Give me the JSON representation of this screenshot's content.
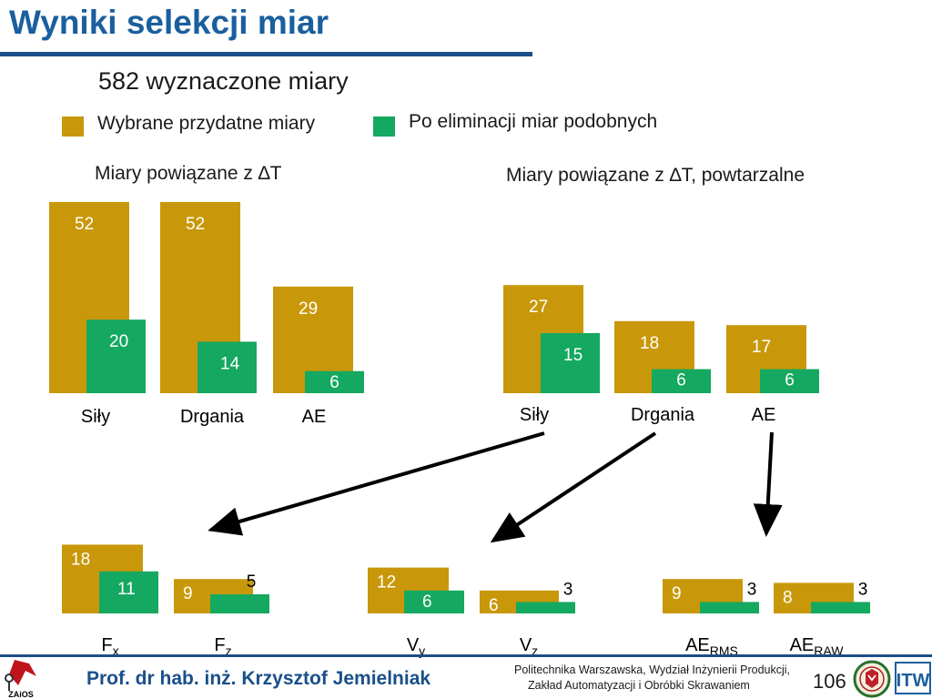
{
  "slide": {
    "title": "Wyniki selekcji miar",
    "subtitle": "582 wyznaczone miary",
    "legend": [
      {
        "label": "Wybrane przydatne miary",
        "color": "#c8980a"
      },
      {
        "label": "Po eliminacji miar podobnych",
        "color": "#15a860"
      }
    ],
    "footer": {
      "author": "Prof. dr hab. inż. Krzysztof Jemielniak",
      "institution_line1": "Politechnika Warszawska, Wydział Inżynierii Produkcji,",
      "institution_line2": "Zakład Automatyzacji i Obróbki Skrawaniem",
      "page_number": "106",
      "logo_left_text": "ZAiOS",
      "logo_right_text": "ITW"
    }
  },
  "chart_data": [
    {
      "type": "bar",
      "title": "Miary powiązane z ∆T",
      "categories": [
        "Siły",
        "Drgania",
        "AE"
      ],
      "series": [
        {
          "name": "Wybrane przydatne miary",
          "values": [
            52,
            52,
            29
          ]
        },
        {
          "name": "Po eliminacji miar podobnych",
          "values": [
            20,
            14,
            6
          ]
        }
      ]
    },
    {
      "type": "bar",
      "title": "Miary powiązane z ∆T, powtarzalne",
      "categories": [
        "Siły",
        "Drgania",
        "AE"
      ],
      "series": [
        {
          "name": "Wybrane przydatne miary",
          "values": [
            27,
            18,
            17
          ]
        },
        {
          "name": "Po eliminacji miar podobnych",
          "values": [
            15,
            6,
            6
          ]
        }
      ]
    },
    {
      "type": "bar",
      "title": "",
      "categories": [
        {
          "main": "F",
          "sub": "x"
        },
        {
          "main": "F",
          "sub": "z"
        },
        {
          "main": "V",
          "sub": "y"
        },
        {
          "main": "V",
          "sub": "z"
        },
        {
          "main": "AE",
          "sub": "RMS"
        },
        {
          "main": "AE",
          "sub": "RAW"
        }
      ],
      "series": [
        {
          "name": "Wybrane przydatne miary",
          "values": [
            18,
            9,
            12,
            6,
            9,
            8
          ]
        },
        {
          "name": "Po eliminacji miar podobnych",
          "values": [
            11,
            5,
            6,
            3,
            3,
            3
          ]
        }
      ]
    }
  ]
}
